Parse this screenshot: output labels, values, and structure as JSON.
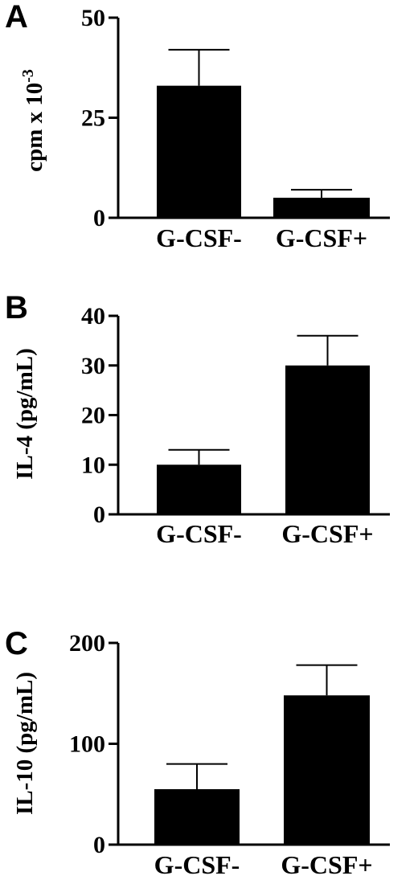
{
  "chart_data": [
    {
      "type": "bar",
      "panel": "A",
      "ylabel": "cpm x 10",
      "ylabel_superscript": "-3",
      "categories": [
        "G-CSF-",
        "G-CSF+"
      ],
      "values": [
        33,
        5
      ],
      "error": [
        9,
        2
      ],
      "yticks": [
        "0",
        "25",
        "50"
      ],
      "ylim": [
        0,
        50
      ],
      "bar_color": "#000000",
      "grid": false
    },
    {
      "type": "bar",
      "panel": "B",
      "ylabel": "IL-4 (pg/mL)",
      "categories": [
        "G-CSF-",
        "G-CSF+"
      ],
      "values": [
        10,
        30
      ],
      "error": [
        3,
        6
      ],
      "yticks": [
        "0",
        "10",
        "20",
        "30",
        "40"
      ],
      "ylim": [
        0,
        40
      ],
      "bar_color": "#000000",
      "grid": false
    },
    {
      "type": "bar",
      "panel": "C",
      "ylabel": "IL-10 (pg/mL)",
      "categories": [
        "G-CSF-",
        "G-CSF+"
      ],
      "values": [
        55,
        148
      ],
      "error": [
        25,
        30
      ],
      "yticks": [
        "0",
        "100",
        "200"
      ],
      "ylim": [
        0,
        200
      ],
      "bar_color": "#000000",
      "grid": false
    }
  ]
}
